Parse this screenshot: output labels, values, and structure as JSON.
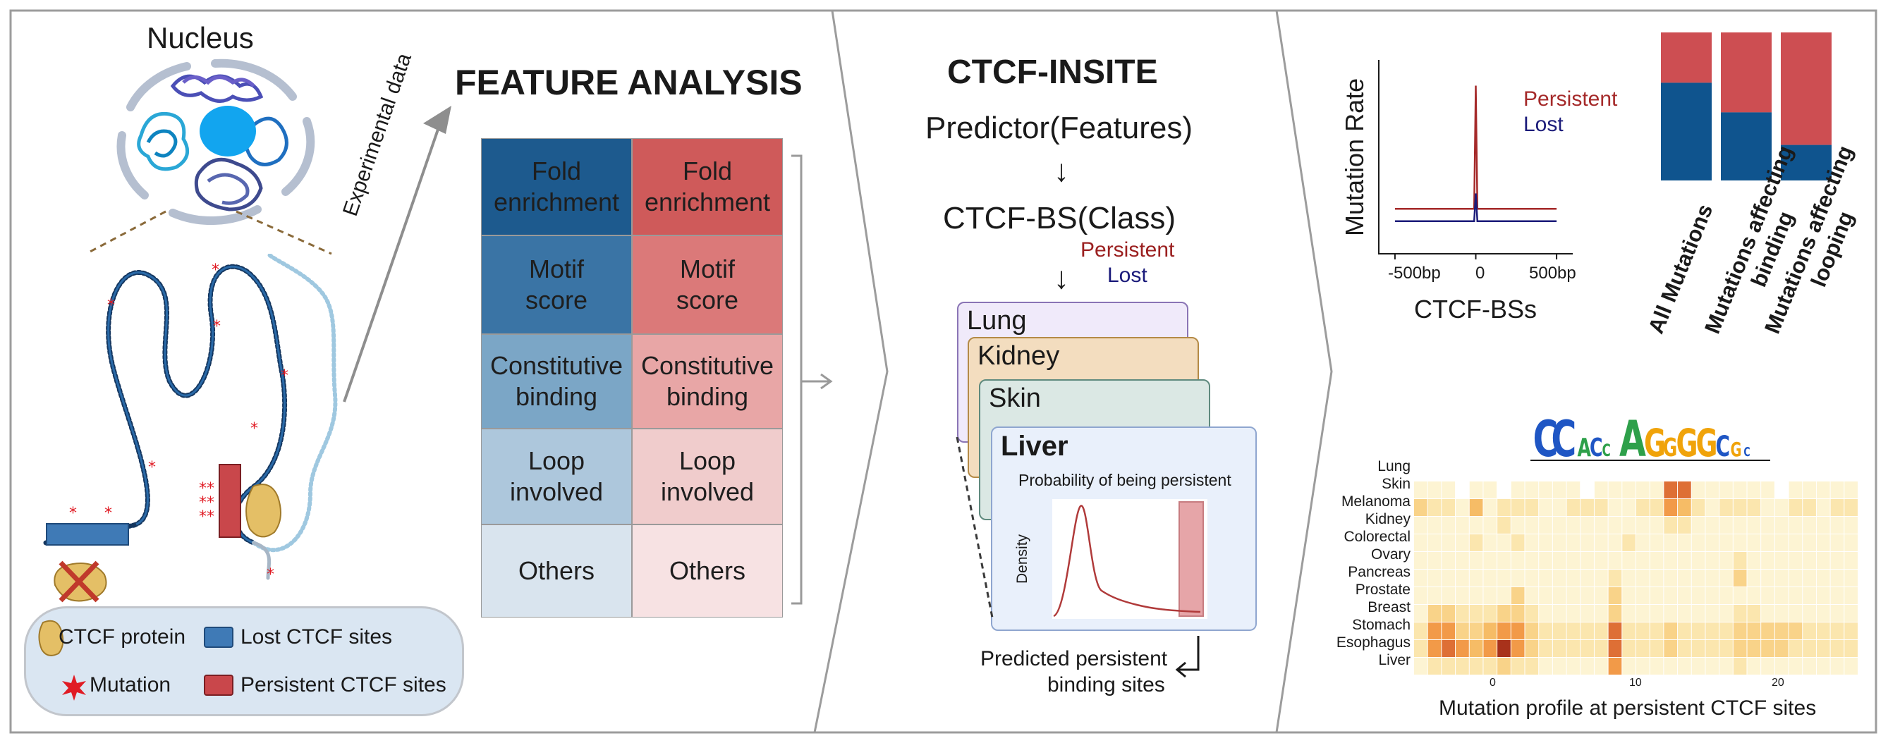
{
  "panel_left": {
    "nucleus_title": "Nucleus",
    "arrow_label": "Experimental data",
    "legend": {
      "protein": "CTCF protein",
      "lost": "Lost CTCF sites",
      "mutation": "Mutation",
      "persistent": "Persistent CTCF sites"
    }
  },
  "feature_analysis": {
    "title": "FEATURE ANALYSIS",
    "rows": [
      {
        "left": "Fold\nenrichment",
        "right": "Fold\nenrichment",
        "left_color": "#1d5a8e",
        "right_color": "#cf5a5a"
      },
      {
        "left": "Motif\nscore",
        "right": "Motif\nscore",
        "left_color": "#3a74a5",
        "right_color": "#db7979"
      },
      {
        "left": "Constitutive\nbinding",
        "right": "Constitutive\nbinding",
        "left_color": "#7ba6c6",
        "right_color": "#e8a6a6"
      },
      {
        "left": "Loop\ninvolved",
        "right": "Loop\ninvolved",
        "left_color": "#adc7dc",
        "right_color": "#f0cccc"
      },
      {
        "left": "Others",
        "right": "Others",
        "left_color": "#d9e4ee",
        "right_color": "#f7e2e3"
      }
    ]
  },
  "ctcf_insite": {
    "title": "CTCF-INSITE",
    "predictor": "Predictor(Features)",
    "class_label": "CTCF-BS(Class)",
    "persistent": "Persistent",
    "lost": "Lost",
    "cards": [
      "Lung",
      "Kidney",
      "Skin",
      "Liver"
    ],
    "card_colors": [
      "#f0eafa",
      "#f3ddbf",
      "#dbe8e4",
      "#e9f0fb"
    ],
    "prob_title": "Probability of being persistent",
    "density_label": "Density",
    "output_label_1": "Predicted persistent",
    "output_label_2": "binding sites"
  },
  "mutation_rate_chart": {
    "ylabel": "Mutation Rate",
    "xlabel": "CTCF-BSs",
    "ticks": [
      "-500bp",
      "0",
      "500bp"
    ],
    "legend": [
      {
        "name": "Persistent",
        "color": "#a52a2a"
      },
      {
        "name": "Lost",
        "color": "#1c1c7a"
      }
    ]
  },
  "chart_data": [
    {
      "type": "line",
      "title": "",
      "xlabel": "CTCF-BSs",
      "ylabel": "Mutation Rate",
      "x": [
        -500,
        -10,
        0,
        10,
        500
      ],
      "x_tick_labels": [
        "-500bp",
        "0",
        "500bp"
      ],
      "series": [
        {
          "name": "Persistent",
          "values": [
            0.2,
            0.2,
            1.0,
            0.2,
            0.2
          ]
        },
        {
          "name": "Lost",
          "values": [
            0.12,
            0.12,
            0.3,
            0.12,
            0.12
          ]
        }
      ]
    },
    {
      "type": "bar",
      "stacked": true,
      "categories": [
        "All Mutations",
        "Mutations affecting\nbinding",
        "Mutations affecting\nlooping"
      ],
      "series": [
        {
          "name": "Lost",
          "color": "#0f548e",
          "values": [
            0.66,
            0.46,
            0.24
          ]
        },
        {
          "name": "Persistent",
          "color": "#cd4e52",
          "values": [
            0.34,
            0.54,
            0.76
          ]
        }
      ]
    },
    {
      "type": "heatmap",
      "xlabel": "Mutation profile at persistent CTCF sites",
      "x_ticks": [
        "0",
        "10",
        "20"
      ],
      "rows": [
        "Lung",
        "Skin",
        "Melanoma",
        "Kidney",
        "Colorectal",
        "Ovary",
        "Pancreas",
        "Prostate",
        "Breast",
        "Stomach",
        "Esophagus",
        "Liver"
      ],
      "columns": 32,
      "values": [
        [
          0,
          0,
          0,
          0,
          0,
          0,
          0,
          0,
          0,
          0,
          0,
          0,
          0,
          0,
          0,
          0,
          0,
          0,
          0,
          0,
          0,
          0,
          0,
          0,
          0,
          0,
          0,
          0,
          0,
          0,
          0,
          0
        ],
        [
          1,
          1,
          1,
          0,
          1,
          1,
          0,
          1,
          1,
          1,
          1,
          1,
          0,
          1,
          1,
          1,
          1,
          1,
          6,
          6,
          1,
          1,
          1,
          1,
          1,
          1,
          0,
          1,
          1,
          1,
          1,
          1
        ],
        [
          3,
          2,
          2,
          1,
          4,
          1,
          2,
          2,
          2,
          1,
          1,
          2,
          2,
          2,
          1,
          1,
          2,
          2,
          5,
          4,
          2,
          1,
          2,
          2,
          2,
          1,
          1,
          2,
          2,
          1,
          2,
          2
        ],
        [
          1,
          1,
          1,
          1,
          1,
          1,
          2,
          1,
          1,
          1,
          1,
          1,
          1,
          1,
          1,
          1,
          1,
          1,
          2,
          2,
          1,
          1,
          1,
          1,
          1,
          1,
          1,
          1,
          1,
          1,
          1,
          1
        ],
        [
          1,
          1,
          1,
          1,
          2,
          1,
          1,
          2,
          1,
          1,
          1,
          1,
          1,
          1,
          1,
          2,
          1,
          1,
          1,
          1,
          1,
          1,
          1,
          1,
          1,
          1,
          1,
          1,
          1,
          1,
          1,
          1
        ],
        [
          1,
          1,
          1,
          1,
          1,
          1,
          1,
          1,
          1,
          1,
          1,
          1,
          1,
          1,
          1,
          1,
          1,
          1,
          1,
          1,
          1,
          1,
          1,
          2,
          1,
          1,
          1,
          1,
          1,
          1,
          1,
          1
        ],
        [
          1,
          1,
          1,
          1,
          1,
          1,
          1,
          1,
          1,
          1,
          1,
          1,
          1,
          1,
          2,
          1,
          1,
          1,
          1,
          1,
          1,
          1,
          1,
          3,
          1,
          1,
          1,
          1,
          1,
          1,
          1,
          1
        ],
        [
          1,
          1,
          1,
          1,
          1,
          1,
          1,
          3,
          1,
          1,
          1,
          1,
          1,
          1,
          3,
          1,
          1,
          1,
          1,
          1,
          1,
          1,
          1,
          1,
          1,
          1,
          1,
          1,
          1,
          1,
          1,
          1
        ],
        [
          1,
          3,
          3,
          2,
          2,
          2,
          3,
          3,
          2,
          1,
          1,
          1,
          1,
          1,
          3,
          1,
          1,
          1,
          1,
          1,
          1,
          1,
          1,
          2,
          2,
          1,
          1,
          1,
          1,
          1,
          1,
          1
        ],
        [
          2,
          5,
          5,
          3,
          3,
          4,
          5,
          5,
          3,
          2,
          2,
          2,
          2,
          2,
          6,
          2,
          2,
          2,
          3,
          2,
          2,
          2,
          2,
          3,
          3,
          3,
          3,
          3,
          2,
          2,
          2,
          2
        ],
        [
          2,
          5,
          6,
          5,
          4,
          5,
          8,
          5,
          3,
          2,
          2,
          2,
          2,
          2,
          6,
          2,
          2,
          2,
          3,
          2,
          2,
          2,
          2,
          3,
          3,
          3,
          3,
          2,
          2,
          2,
          2,
          2
        ],
        [
          1,
          2,
          2,
          2,
          2,
          2,
          3,
          2,
          2,
          1,
          1,
          1,
          1,
          1,
          5,
          1,
          1,
          1,
          1,
          1,
          1,
          1,
          1,
          2,
          1,
          1,
          1,
          1,
          1,
          1,
          1,
          1
        ]
      ]
    }
  ],
  "heatmap_labels": {
    "xlabel": "Mutation profile at persistent CTCF sites",
    "ticks": [
      "0",
      "10",
      "20"
    ],
    "tissues": [
      "Lung",
      "Skin",
      "Melanoma",
      "Kidney",
      "Colorectal",
      "Ovary",
      "Pancreas",
      "Prostate",
      "Breast",
      "Stomach",
      "Esophagus",
      "Liver"
    ]
  },
  "bar_labels": [
    "All Mutations",
    "Mutations affecting binding",
    "Mutations affecting looping"
  ],
  "bar_label_lines": [
    [
      "All Mutations"
    ],
    [
      "Mutations affecting",
      "binding"
    ],
    [
      "Mutations affecting",
      "looping"
    ]
  ],
  "motif_text": "CCACTAGGGGGCGC"
}
